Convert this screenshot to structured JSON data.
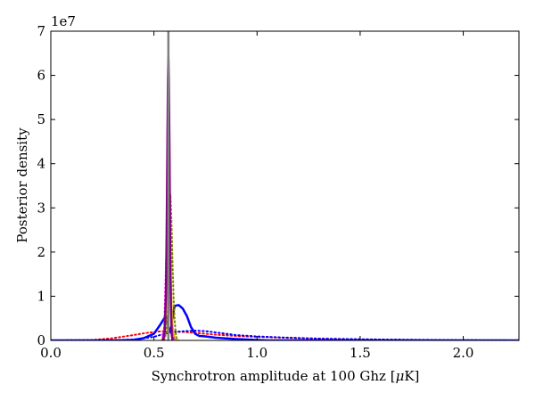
{
  "chart_data": {
    "type": "line",
    "title": "",
    "xlabel": "Synchrotron amplitude at 100 Ghz [",
    "xlabel_mu": "μ",
    "xlabel_tail": "K]",
    "ylabel": "Posterior density",
    "offset_text": "1e7",
    "xlim": [
      0.0,
      2.27
    ],
    "ylim": [
      0,
      7
    ],
    "y_scale_factor": 10000000,
    "x_ticks": [
      0.0,
      0.5,
      1.0,
      1.5,
      2.0
    ],
    "x_tick_labels": [
      "0.0",
      "0.5",
      "1.0",
      "1.5",
      "2.0"
    ],
    "y_ticks": [
      0,
      1,
      2,
      3,
      4,
      5,
      6,
      7
    ],
    "y_tick_labels": [
      "0",
      "1",
      "2",
      "3",
      "4",
      "5",
      "6",
      "7"
    ],
    "grid": false,
    "vline": {
      "x": 0.57,
      "color": "#7f7f7f"
    },
    "series": [
      {
        "color": "#ff0000",
        "style": "dotted",
        "x": [
          0.0,
          0.2,
          0.3,
          0.4,
          0.45,
          0.5,
          0.52,
          0.55,
          0.6,
          0.65,
          0.7,
          0.8,
          0.9,
          1.0,
          1.2,
          1.5,
          2.0,
          2.27
        ],
        "y": [
          0.0,
          0.01,
          0.05,
          0.12,
          0.16,
          0.19,
          0.2,
          0.21,
          0.2,
          0.19,
          0.17,
          0.13,
          0.1,
          0.08,
          0.05,
          0.02,
          0.005,
          0.0
        ]
      },
      {
        "color": "#0000ff",
        "style": "dotted",
        "x": [
          0.0,
          0.3,
          0.4,
          0.5,
          0.55,
          0.6,
          0.65,
          0.7,
          0.75,
          0.8,
          0.9,
          1.0,
          1.1,
          1.3,
          1.6,
          2.0,
          2.27
        ],
        "y": [
          0.0,
          0.005,
          0.02,
          0.08,
          0.15,
          0.19,
          0.21,
          0.22,
          0.21,
          0.18,
          0.12,
          0.09,
          0.07,
          0.04,
          0.02,
          0.005,
          0.0
        ]
      },
      {
        "color": "#0000ff",
        "style": "solid",
        "x": [
          0.0,
          0.3,
          0.4,
          0.45,
          0.5,
          0.53,
          0.55,
          0.56,
          0.57,
          0.58,
          0.59,
          0.6,
          0.62,
          0.64,
          0.66,
          0.68,
          0.7,
          0.72,
          0.75,
          0.8,
          0.9,
          1.0,
          1.05,
          2.27
        ],
        "y": [
          0.0,
          0.0,
          0.01,
          0.05,
          0.15,
          0.35,
          0.5,
          0.55,
          0.3,
          0.2,
          0.5,
          0.78,
          0.8,
          0.72,
          0.55,
          0.3,
          0.15,
          0.1,
          0.09,
          0.06,
          0.03,
          0.01,
          0.0,
          0.0
        ]
      },
      {
        "color": "#808000",
        "style": "dotted",
        "x": [
          0.55,
          0.56,
          0.57,
          0.575,
          0.58,
          0.585,
          0.59,
          0.595,
          0.6,
          0.605,
          0.61,
          0.62
        ],
        "y": [
          0.0,
          0.2,
          1.0,
          2.5,
          3.3,
          2.7,
          1.8,
          1.0,
          0.5,
          0.2,
          0.05,
          0.0
        ]
      },
      {
        "color": "#d4b800",
        "style": "solid",
        "x": [
          0.54,
          0.55,
          0.56,
          0.565,
          0.57,
          0.575,
          0.58,
          0.585,
          0.59,
          0.6,
          0.61
        ],
        "y": [
          0.0,
          0.2,
          0.8,
          1.6,
          2.3,
          2.2,
          1.5,
          0.8,
          0.3,
          0.05,
          0.0
        ]
      },
      {
        "color": "#ff00ff",
        "style": "dotted",
        "x": [
          0.54,
          0.55,
          0.56,
          0.565,
          0.57,
          0.575,
          0.58,
          0.585,
          0.59,
          0.6
        ],
        "y": [
          0.0,
          0.3,
          2.0,
          4.5,
          6.2,
          4.5,
          2.0,
          0.5,
          0.1,
          0.0
        ]
      },
      {
        "color": "#800080",
        "style": "solid",
        "x": [
          0.545,
          0.552,
          0.558,
          0.562,
          0.566,
          0.568,
          0.57,
          0.572,
          0.575,
          0.578,
          0.582,
          0.586,
          0.59
        ],
        "y": [
          0.0,
          0.2,
          1.0,
          2.5,
          4.8,
          5.9,
          6.4,
          5.9,
          4.5,
          2.5,
          0.8,
          0.15,
          0.0
        ]
      }
    ]
  }
}
